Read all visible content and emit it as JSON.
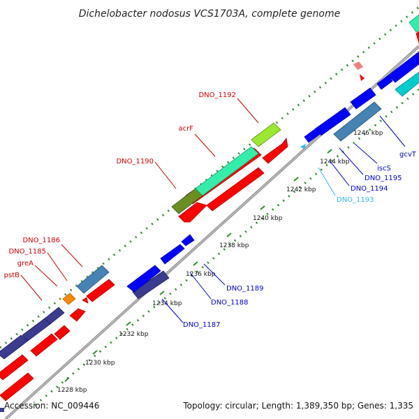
{
  "title": "Dichelobacter nodosus VCS1703A, complete genome",
  "footer": {
    "accession": "Accession: NC_009446",
    "summary": "Topology: circular; Length: 1,389,350 bp; Genes: 1,335"
  },
  "colors": {
    "backbone": "#9a9a9a",
    "tick": "#2e8b2e",
    "forward_label": "#cc0000",
    "reverse_label": "#0000cc",
    "rna_label": "#33bbee"
  },
  "ticks": [
    {
      "label": "1228 kbp"
    },
    {
      "label": "1230 kbp"
    },
    {
      "label": "1232 kbp"
    },
    {
      "label": "1234 kbp"
    },
    {
      "label": "1236 kbp"
    },
    {
      "label": "1238 kbp"
    },
    {
      "label": "1240 kbp"
    },
    {
      "label": "1242 kbp"
    },
    {
      "label": "1244 kbp"
    },
    {
      "label": "1246 kbp"
    }
  ],
  "labels": {
    "dno_1192": "DNO_1192",
    "acrf": "acrF",
    "dno_1190": "DNO_1190",
    "dno_1186": "DNO_1186",
    "dno_1185": "DNO_1185",
    "grea": "greA",
    "pstb": "pstB",
    "gcvt": "gcvT",
    "iscs": "iscS",
    "dno_1195": "DNO_1195",
    "dno_1194": "DNO_1194",
    "dno_1193": "DNO_1193",
    "dno_1189": "DNO_1189",
    "dno_1188": "DNO_1188",
    "dno_1187": "DNO_1187"
  }
}
